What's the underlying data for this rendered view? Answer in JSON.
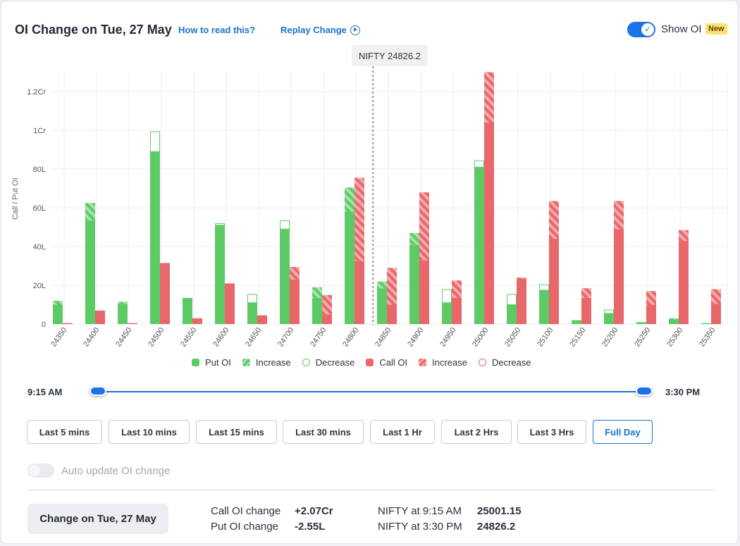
{
  "header": {
    "title": "OI Change on Tue, 27 May",
    "how_to_read": "How to read this?",
    "replay": "Replay Change",
    "show_oi_label": "Show OI",
    "new_badge": "New"
  },
  "chart_data": {
    "type": "bar",
    "ylabel": "Call / Put OI",
    "yticks": [
      "0",
      "20L",
      "40L",
      "60L",
      "80L",
      "1Cr",
      "1.2Cr"
    ],
    "ylim": [
      0,
      1.3
    ],
    "unit": "Cr",
    "marker_label": "NIFTY 24826.2",
    "marker_value": 24826.2,
    "categories": [
      "24350",
      "24400",
      "24450",
      "24500",
      "24550",
      "24600",
      "24650",
      "24700",
      "24750",
      "24800",
      "24850",
      "24900",
      "24950",
      "25000",
      "25050",
      "25100",
      "25150",
      "25200",
      "25250",
      "25300",
      "25350"
    ],
    "series": [
      {
        "name": "Put OI",
        "color": "#5dcb65",
        "base": [
          0.1,
          0.535,
          0.105,
          0.89,
          0.135,
          0.51,
          0.11,
          0.49,
          0.135,
          0.58,
          0.185,
          0.41,
          0.11,
          0.81,
          0.1,
          0.175,
          0.02,
          0.055,
          0.01,
          0.025,
          0.005
        ],
        "change": [
          0.02,
          0.09,
          0.01,
          0.105,
          0.0,
          0.01,
          0.045,
          0.045,
          0.055,
          0.125,
          0.035,
          0.06,
          0.07,
          0.035,
          0.055,
          0.03,
          0.0,
          0.02,
          0.0,
          0.005,
          0.0
        ],
        "direction": [
          "inc",
          "inc",
          "inc",
          "dec",
          "inc",
          "dec",
          "dec",
          "dec",
          "inc",
          "inc",
          "inc",
          "inc",
          "dec",
          "dec",
          "dec",
          "dec",
          "inc",
          "dec",
          "inc",
          "inc",
          "inc"
        ]
      },
      {
        "name": "Call OI",
        "color": "#e8676a",
        "base": [
          0.005,
          0.07,
          0.005,
          0.315,
          0.03,
          0.21,
          0.045,
          0.23,
          0.05,
          0.325,
          0.1,
          0.33,
          0.135,
          1.04,
          0.235,
          0.44,
          0.135,
          0.49,
          0.1,
          0.43,
          0.105
        ],
        "change": [
          0.0,
          0.0,
          0.0,
          0.0,
          0.0,
          0.0,
          0.0,
          0.065,
          0.1,
          0.43,
          0.19,
          0.35,
          0.09,
          0.26,
          0.005,
          0.195,
          0.05,
          0.145,
          0.07,
          0.055,
          0.075
        ],
        "direction": [
          "inc",
          "inc",
          "inc",
          "inc",
          "inc",
          "inc",
          "inc",
          "inc",
          "inc",
          "inc",
          "inc",
          "inc",
          "inc",
          "inc",
          "inc",
          "inc",
          "inc",
          "inc",
          "inc",
          "inc",
          "inc"
        ]
      }
    ],
    "legend": [
      "Put OI",
      "Increase",
      "Decrease",
      "Call OI",
      "Increase",
      "Decrease"
    ],
    "legend_position": "bottom"
  },
  "legend": {
    "put_oi": "Put OI",
    "put_increase": "Increase",
    "put_decrease": "Decrease",
    "call_oi": "Call OI",
    "call_increase": "Increase",
    "call_decrease": "Decrease"
  },
  "slider": {
    "start": "9:15 AM",
    "end": "3:30 PM"
  },
  "range_buttons": [
    "Last 5 mins",
    "Last 10 mins",
    "Last 15 mins",
    "Last 30 mins",
    "Last 1 Hr",
    "Last 2 Hrs",
    "Last 3 Hrs",
    "Full Day"
  ],
  "active_range": "Full Day",
  "auto_update_label": "Auto update OI change",
  "summary": {
    "change_button": "Change on Tue, 27 May",
    "call_label": "Call OI change",
    "call_value": "+2.07Cr",
    "put_label": "Put OI change",
    "put_value": "-2.55L",
    "nifty_open_label": "NIFTY at 9:15 AM",
    "nifty_open_value": "25001.15",
    "nifty_close_label": "NIFTY at 3:30 PM",
    "nifty_close_value": "24826.2"
  },
  "colors": {
    "put": "#5dcb65",
    "call": "#e8676a",
    "accent": "#1a73e8"
  }
}
